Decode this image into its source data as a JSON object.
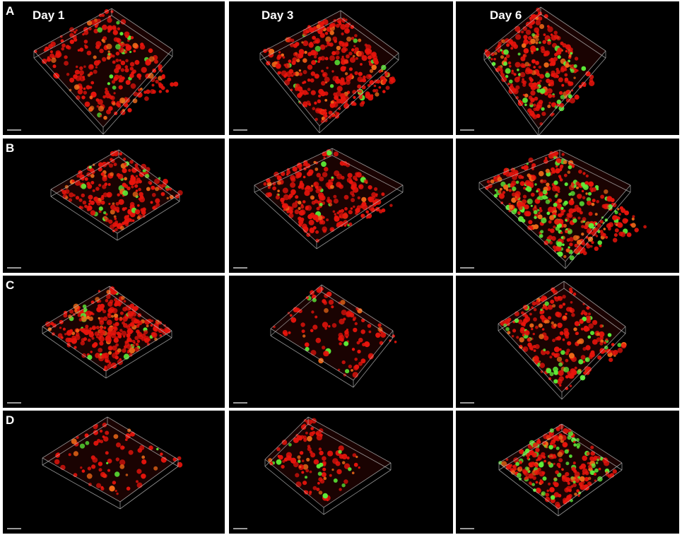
{
  "figure": {
    "column_labels": [
      "Day 1",
      "Day 3",
      "Day 6"
    ],
    "row_labels": [
      "A",
      "B",
      "C",
      "D"
    ],
    "colors": {
      "background": "#000000",
      "border": "#ffffff",
      "box_edge": "#b8b8b8",
      "cell_red": "#e8140c",
      "cell_orange": "#f06a18",
      "cell_green": "#5ef038"
    },
    "panels": [
      {
        "row": "A",
        "day": "Day 1",
        "green_level": "low"
      },
      {
        "row": "A",
        "day": "Day 3",
        "green_level": "low"
      },
      {
        "row": "A",
        "day": "Day 6",
        "green_level": "medium"
      },
      {
        "row": "B",
        "day": "Day 1",
        "green_level": "low"
      },
      {
        "row": "B",
        "day": "Day 3",
        "green_level": "low"
      },
      {
        "row": "B",
        "day": "Day 6",
        "green_level": "high"
      },
      {
        "row": "C",
        "day": "Day 1",
        "green_level": "low"
      },
      {
        "row": "C",
        "day": "Day 3",
        "green_level": "low"
      },
      {
        "row": "C",
        "day": "Day 6",
        "green_level": "medium"
      },
      {
        "row": "D",
        "day": "Day 1",
        "green_level": "low"
      },
      {
        "row": "D",
        "day": "Day 3",
        "green_level": "medium"
      },
      {
        "row": "D",
        "day": "Day 6",
        "green_level": "high"
      }
    ]
  }
}
